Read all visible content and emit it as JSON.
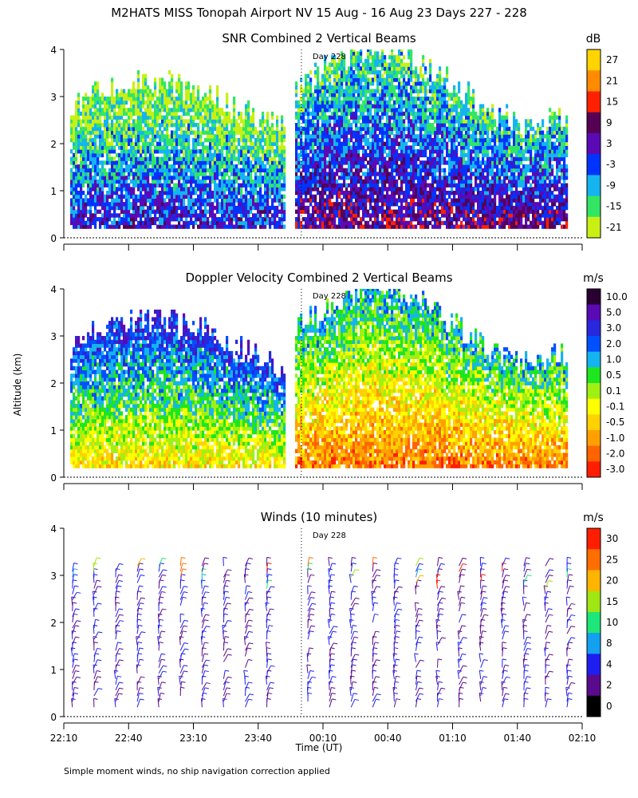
{
  "figure": {
    "title": "M2HATS MISS Tonopah Airport NV  15 Aug - 16 Aug 23 Days 227 - 228",
    "ylabel": "Altitude (km)",
    "xlabel": "Time (UT)",
    "footnote": "Simple moment winds, no ship navigation correction applied",
    "day_marker": "Day 228"
  },
  "chart_data": [
    {
      "type": "heatmap",
      "title": "SNR Combined 2 Vertical Beams",
      "unit": "dB",
      "x_ticks": [
        "22:10",
        "22:40",
        "23:10",
        "23:40",
        "00:10",
        "00:40",
        "01:10",
        "01:40",
        "02:10"
      ],
      "y_ticks": [
        "0",
        "1",
        "2",
        "3",
        "4"
      ],
      "ylim": [
        0,
        4
      ],
      "colorbar_labels": [
        "27",
        "21",
        "15",
        "9",
        "3",
        "-3",
        "-9",
        "-15",
        "-21"
      ],
      "colorbar_colors": [
        "#ffd400",
        "#ff8c00",
        "#ff2000",
        "#550055",
        "#5a0ab4",
        "#0033ff",
        "#14b4f0",
        "#32e664",
        "#c8f014"
      ],
      "data_gap": [
        "23:52",
        "23:56"
      ]
    },
    {
      "type": "heatmap",
      "title": "Doppler Velocity Combined 2 Vertical Beams",
      "unit": "m/s",
      "x_ticks": [
        "22:10",
        "22:40",
        "23:10",
        "23:40",
        "00:10",
        "00:40",
        "01:10",
        "01:40",
        "02:10"
      ],
      "y_ticks": [
        "0",
        "1",
        "2",
        "3",
        "4"
      ],
      "ylim": [
        0,
        4
      ],
      "colorbar_labels": [
        "10.0",
        "5.0",
        "3.0",
        "2.0",
        "1.0",
        "0.5",
        "0.1",
        "-0.1",
        "-0.5",
        "-1.0",
        "-2.0",
        "-3.0"
      ],
      "colorbar_colors": [
        "#2a0033",
        "#5a0ab4",
        "#2828dc",
        "#0050ff",
        "#14b4f0",
        "#1ee61e",
        "#a0f014",
        "#ffff00",
        "#ffd200",
        "#ffa000",
        "#ff6400",
        "#ff1e00"
      ],
      "data_gap": [
        "23:52",
        "23:56"
      ]
    },
    {
      "type": "scatter",
      "title": "Winds (10 minutes)",
      "unit": "m/s",
      "x_ticks": [
        "22:10",
        "22:40",
        "23:10",
        "23:40",
        "00:10",
        "00:40",
        "01:10",
        "01:40",
        "02:10"
      ],
      "y_ticks": [
        "0",
        "1",
        "2",
        "3",
        "4"
      ],
      "ylim": [
        0,
        4
      ],
      "colorbar_labels": [
        "30",
        "25",
        "20",
        "15",
        "10",
        "8",
        "4",
        "2",
        "0"
      ],
      "colorbar_colors": [
        "#ff1e00",
        "#ff6e00",
        "#ffb400",
        "#a0e614",
        "#1ee678",
        "#14a0f0",
        "#1e1ef0",
        "#5a0a8c",
        "#000000"
      ],
      "profile_times": [
        "22:14",
        "22:24",
        "22:34",
        "22:44",
        "22:54",
        "23:04",
        "23:14",
        "23:24",
        "23:34",
        "23:44",
        "00:03",
        "00:13",
        "00:23",
        "00:33",
        "00:43",
        "00:53",
        "01:03",
        "01:13",
        "01:23",
        "01:33",
        "01:43",
        "01:53",
        "02:03"
      ]
    }
  ]
}
